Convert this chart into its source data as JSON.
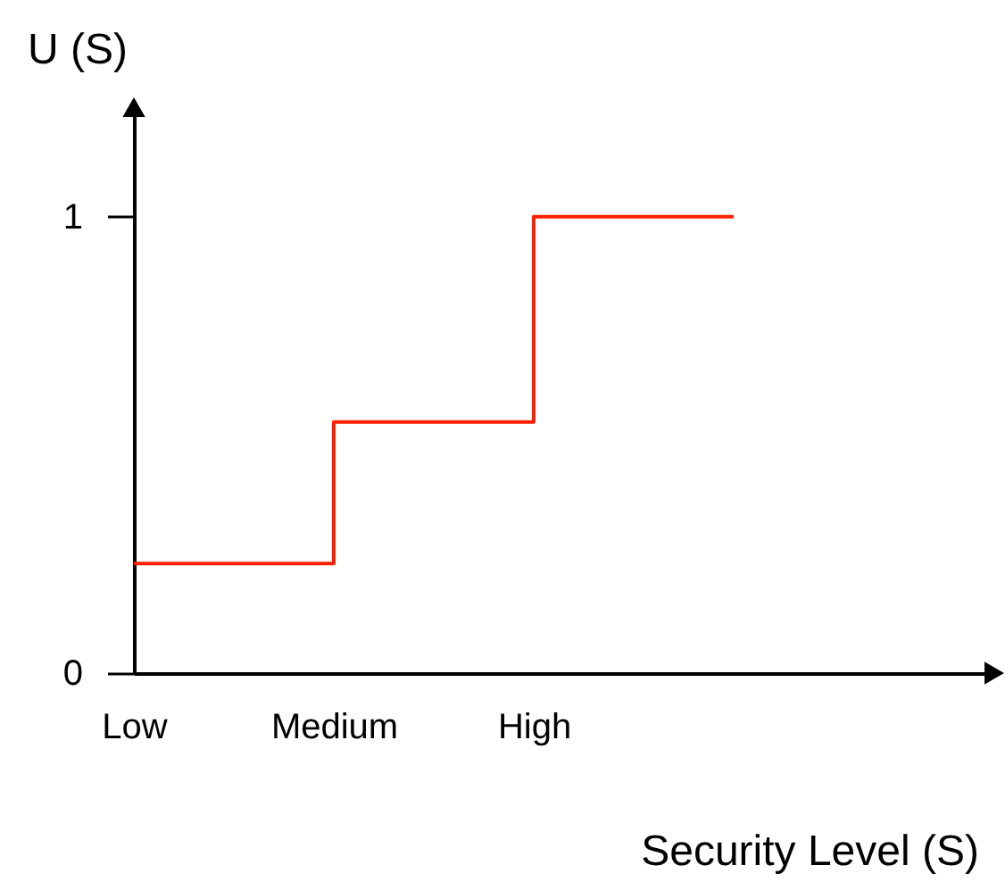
{
  "chart_data": {
    "type": "step",
    "xlabel": "Security Level (S)",
    "ylabel": "U (S)",
    "categories": [
      "Low",
      "Medium",
      "High",
      null
    ],
    "values": [
      0.24,
      0.55,
      1,
      1
    ],
    "color": "#ff2000",
    "ylim": [
      0,
      1.24
    ],
    "yticks": [
      0,
      1
    ],
    "grid": false
  }
}
